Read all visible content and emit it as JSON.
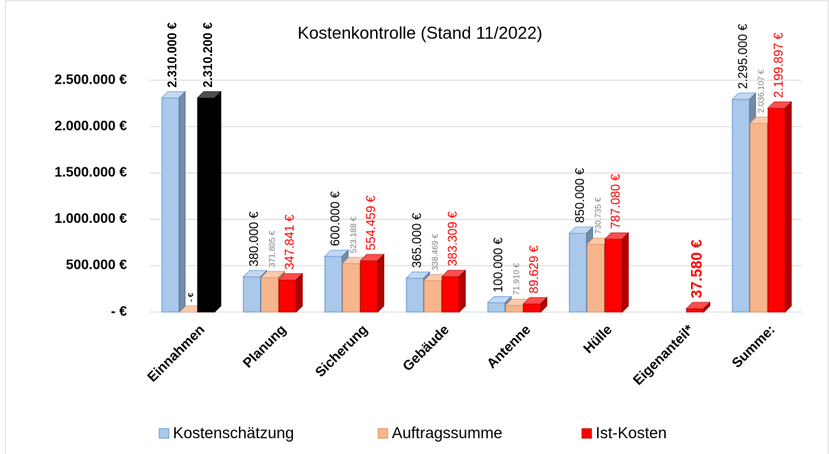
{
  "chart_data": {
    "type": "bar3d",
    "title": "Kostenkontrolle  (Stand  11/2022)",
    "categories": [
      "Einnahmen",
      "Planung",
      "Sicherung",
      "Gebäude",
      "Antenne",
      "Hülle",
      "Eigenanteil*",
      "Summe:"
    ],
    "series": [
      {
        "name": "Kostenschätzung",
        "color": "#a9c8ea",
        "values": [
          2310000,
          380000,
          600000,
          365000,
          100000,
          850000,
          null,
          2295000
        ],
        "value_labels": [
          "2.310.000 €",
          "380.000 €",
          "600.000 €",
          "365.000 €",
          "100.000 €",
          "850.000 €",
          null,
          "2.295.000 €"
        ]
      },
      {
        "name": "Auftragssumme",
        "color": "#f7b58c",
        "values": [
          0,
          371805,
          523188,
          338469,
          71910,
          730735,
          null,
          2036107
        ],
        "value_labels": [
          "- €",
          "371.805 €",
          "523.188 €",
          "338.469 €",
          "71.910 €",
          "730.735 €",
          null,
          "2.036.107 €"
        ]
      },
      {
        "name": "Ist-Kosten",
        "color": "#ff0000",
        "colors": [
          "#000000",
          "#ff0000",
          "#ff0000",
          "#ff0000",
          "#ff0000",
          "#ff0000",
          "#ff0000",
          "#ff0000"
        ],
        "values": [
          2310200,
          347841,
          554459,
          383309,
          89629,
          787080,
          37580,
          2199897
        ],
        "value_labels": [
          "2.310.200 €",
          "347.841 €",
          "554.459 €",
          "383.309 €",
          "89.629 €",
          "787.080 €",
          "37.580 €",
          "2.199.897 €"
        ]
      }
    ],
    "ylim": [
      0,
      2500000
    ],
    "yticks": [
      {
        "value": 0,
        "label": "- €"
      },
      {
        "value": 500000,
        "label": "500.000 €"
      },
      {
        "value": 1000000,
        "label": "1.000.000 €"
      },
      {
        "value": 1500000,
        "label": "1.500.000 €"
      },
      {
        "value": 2000000,
        "label": "2.000.000 €"
      },
      {
        "value": 2500000,
        "label": "2.500.000 €"
      }
    ],
    "grid": true,
    "legend": "bottom"
  }
}
